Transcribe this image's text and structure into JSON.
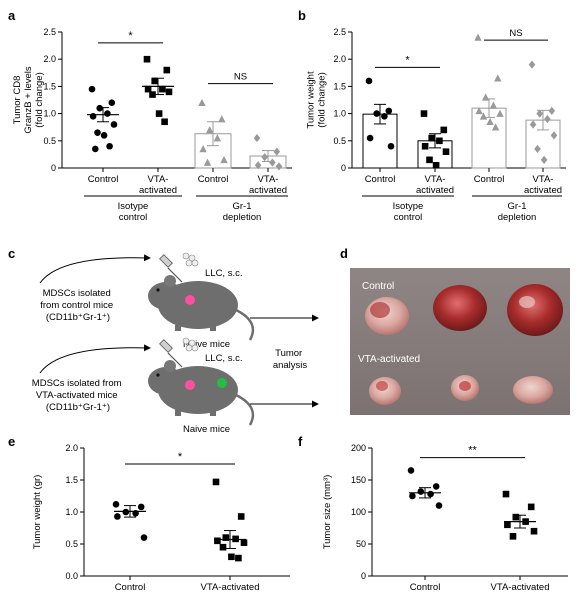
{
  "panel_labels": {
    "a": "a",
    "b": "b",
    "c": "c",
    "d": "d",
    "e": "e",
    "f": "f"
  },
  "colors": {
    "gray": "#9a9a9a",
    "black": "#000000",
    "tumor_red": "#b23a3a",
    "photo_bg": "#8a7f7f"
  },
  "chart_data": [
    {
      "id": "a",
      "type": "scatter",
      "ylabel_lines": [
        "Tumor CD8",
        "GranzB + levels",
        "(fold change)"
      ],
      "ylim": [
        0,
        2.5
      ],
      "yticks": [
        "0",
        "0.5",
        "1.0",
        "1.5",
        "2.0",
        "2.5"
      ],
      "categories": [
        {
          "lines": [
            "Control"
          ],
          "group": 0,
          "mean": 0.98,
          "sem": 0.13,
          "bar": false,
          "marker": "circle",
          "color": "#000000",
          "values": [
            1.45,
            1.2,
            1.1,
            1.0,
            0.95,
            0.8,
            0.65,
            0.6,
            0.4,
            0.35
          ]
        },
        {
          "lines": [
            "VTA-",
            "activated"
          ],
          "group": 0,
          "mean": 1.5,
          "sem": 0.15,
          "bar": false,
          "marker": "square",
          "color": "#000000",
          "values": [
            2.0,
            1.8,
            1.6,
            1.45,
            1.45,
            1.4,
            1.35,
            1.0,
            0.85
          ]
        },
        {
          "lines": [
            "Control"
          ],
          "group": 1,
          "mean": 0.63,
          "sem": 0.22,
          "bar": true,
          "marker": "triangle",
          "color": "#9a9a9a",
          "values": [
            1.2,
            0.9,
            0.7,
            0.55,
            0.35,
            0.15,
            0.1
          ]
        },
        {
          "lines": [
            "VTA-",
            "activated"
          ],
          "group": 1,
          "mean": 0.22,
          "sem": 0.1,
          "bar": true,
          "marker": "diamond",
          "color": "#9a9a9a",
          "values": [
            0.55,
            0.3,
            0.2,
            0.1,
            0.05,
            0.03
          ]
        }
      ],
      "groups": [
        {
          "lines": [
            "Isotype",
            "control"
          ]
        },
        {
          "lines": [
            "Gr-1",
            "depletion"
          ]
        }
      ],
      "annotations": [
        {
          "from": 0,
          "to": 1,
          "y": 2.3,
          "text": "*"
        },
        {
          "from": 2,
          "to": 3,
          "y": 1.55,
          "text": "NS"
        }
      ]
    },
    {
      "id": "b",
      "type": "scatter",
      "ylabel_lines": [
        "Tumor weight",
        "(fold change)"
      ],
      "ylim": [
        0,
        2.5
      ],
      "yticks": [
        "0",
        "0.5",
        "1.0",
        "1.5",
        "2.0",
        "2.5"
      ],
      "categories": [
        {
          "lines": [
            "Control"
          ],
          "group": 0,
          "mean": 0.99,
          "sem": 0.18,
          "bar": true,
          "marker": "circle",
          "color": "#000000",
          "values": [
            1.6,
            1.05,
            1.0,
            0.95,
            0.55,
            0.4
          ]
        },
        {
          "lines": [
            "VTA-",
            "activated"
          ],
          "group": 0,
          "mean": 0.5,
          "sem": 0.13,
          "bar": true,
          "marker": "square",
          "color": "#000000",
          "values": [
            1.0,
            0.7,
            0.55,
            0.5,
            0.4,
            0.3,
            0.15,
            0.05
          ]
        },
        {
          "lines": [
            "Control"
          ],
          "group": 1,
          "mean": 1.1,
          "sem": 0.17,
          "bar": true,
          "marker": "triangle",
          "color": "#9a9a9a",
          "values": [
            2.4,
            1.65,
            1.3,
            1.15,
            1.05,
            1.0,
            0.95,
            0.85,
            0.75
          ]
        },
        {
          "lines": [
            "VTA-",
            "activated"
          ],
          "group": 1,
          "mean": 0.88,
          "sem": 0.18,
          "bar": true,
          "marker": "diamond",
          "color": "#9a9a9a",
          "values": [
            1.9,
            1.05,
            1.0,
            0.9,
            0.8,
            0.6,
            0.35,
            0.15
          ]
        }
      ],
      "groups": [
        {
          "lines": [
            "Isotype",
            "control"
          ]
        },
        {
          "lines": [
            "Gr-1",
            "depletion"
          ]
        }
      ],
      "annotations": [
        {
          "from": 0,
          "to": 1,
          "y": 1.85,
          "text": "*"
        },
        {
          "from": 2,
          "to": 3,
          "y": 2.35,
          "text": "NS"
        }
      ]
    },
    {
      "id": "e",
      "type": "scatter",
      "ylabel": "Tumor weight (gr)",
      "ylim": [
        0,
        2.0
      ],
      "yticks": [
        "0.0",
        "0.5",
        "1.0",
        "1.5",
        "2.0"
      ],
      "categories": [
        {
          "lines": [
            "Control"
          ],
          "mean": 1.01,
          "sem": 0.09,
          "bar": false,
          "marker": "circle",
          "color": "#000000",
          "values": [
            1.12,
            1.08,
            1.0,
            0.98,
            0.93,
            0.6
          ]
        },
        {
          "lines": [
            "VTA-activated"
          ],
          "mean": 0.57,
          "sem": 0.14,
          "bar": false,
          "marker": "square",
          "color": "#000000",
          "values": [
            1.47,
            0.93,
            0.6,
            0.58,
            0.55,
            0.52,
            0.45,
            0.3,
            0.28
          ]
        }
      ],
      "annotations": [
        {
          "from": 0,
          "to": 1,
          "y": 1.75,
          "text": "*"
        }
      ]
    },
    {
      "id": "f",
      "type": "scatter",
      "ylabel": "Tumor size (mm³)",
      "ylim": [
        0,
        200
      ],
      "yticks": [
        "0",
        "50",
        "100",
        "150",
        "200"
      ],
      "categories": [
        {
          "lines": [
            "Control"
          ],
          "mean": 130,
          "sem": 8,
          "bar": false,
          "marker": "circle",
          "color": "#000000",
          "values": [
            165,
            140,
            132,
            128,
            125,
            110
          ]
        },
        {
          "lines": [
            "VTA-activated"
          ],
          "mean": 85,
          "sem": 10,
          "bar": false,
          "marker": "square",
          "color": "#000000",
          "values": [
            128,
            108,
            92,
            85,
            80,
            70,
            62
          ]
        }
      ],
      "annotations": [
        {
          "from": 0,
          "to": 1,
          "y": 185,
          "text": "**"
        }
      ]
    }
  ],
  "diagram": {
    "top": {
      "source_lines": [
        "MDSCs isolated",
        "from control mice",
        "(CD11b⁺Gr-1⁺)"
      ],
      "injection": "LLC, s.c.",
      "mouse": "Naive mice"
    },
    "bottom": {
      "source_lines": [
        "MDSCs isolated from",
        "VTA-activated mice",
        "(CD11b⁺Gr-1⁺)"
      ],
      "injection": "LLC, s.c.",
      "mouse": "Naive mice"
    },
    "outcome_lines": [
      "Tumor",
      "analysis"
    ]
  },
  "photo": {
    "label_control": "Control",
    "label_vta": "VTA-activated"
  }
}
